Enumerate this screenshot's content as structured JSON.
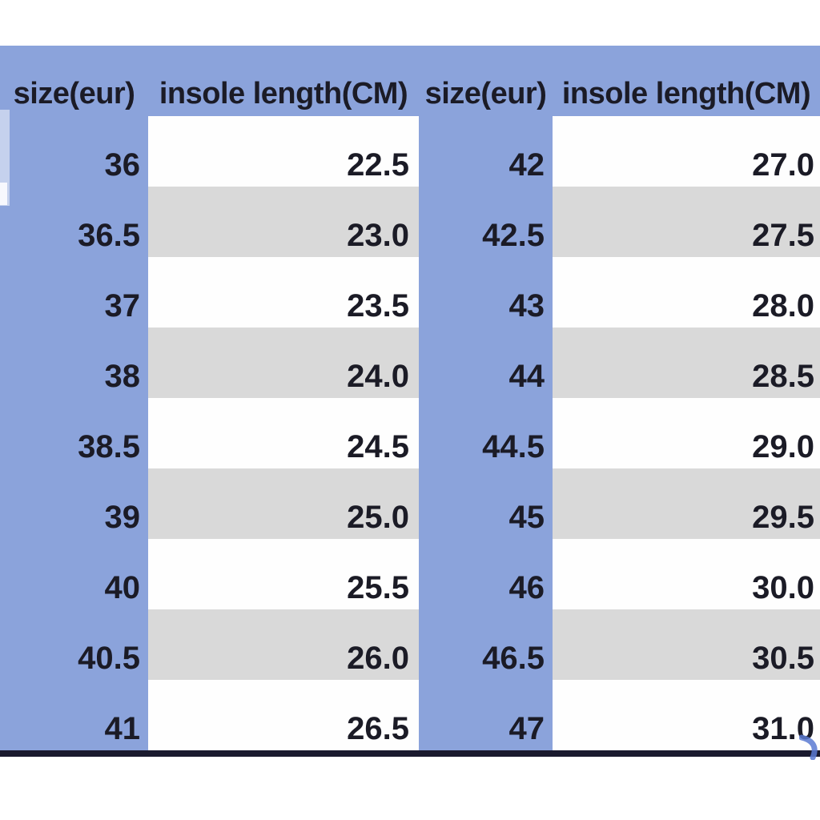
{
  "header": {
    "columns": [
      "size(eur)",
      "insole length(CM)",
      "size(eur)",
      "insole length(CM)"
    ]
  },
  "colors": {
    "page_background": "#FFFFFF",
    "table_blue": "#8BA3DB",
    "row_white": "#FEFEFE",
    "row_gray": "#D9D9D9",
    "text_dark": "#1B1B26",
    "bottom_line": "#1A1A2E",
    "corner_mark_blue": "#5A7AD2"
  },
  "chart_data": {
    "type": "table",
    "columns": [
      "size(eur)",
      "insole length(CM)",
      "size(eur)",
      "insole length(CM)"
    ],
    "rows": [
      [
        "36",
        "22.5",
        "42",
        "27.0"
      ],
      [
        "36.5",
        "23.0",
        "42.5",
        "27.5"
      ],
      [
        "37",
        "23.5",
        "43",
        "28.0"
      ],
      [
        "38",
        "24.0",
        "44",
        "28.5"
      ],
      [
        "38.5",
        "24.5",
        "44.5",
        "29.0"
      ],
      [
        "39",
        "25.0",
        "45",
        "29.5"
      ],
      [
        "40",
        "25.5",
        "46",
        "30.0"
      ],
      [
        "40.5",
        "26.0",
        "46.5",
        "30.5"
      ],
      [
        "41",
        "26.5",
        "47",
        "31.0"
      ]
    ],
    "layout": {
      "stripe_pattern": "length columns alternate white/gray starting white",
      "size_columns_background": "blue",
      "values_alignment": "right-bottom",
      "headers_alignment": "center-bottom"
    }
  }
}
